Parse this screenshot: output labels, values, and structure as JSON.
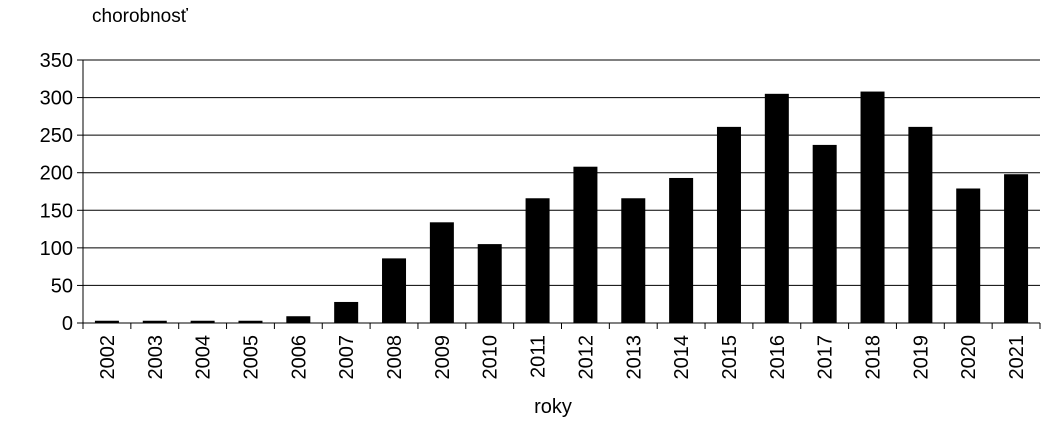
{
  "chart_data": {
    "type": "bar",
    "ylabel": "chorobnosť",
    "xlabel": "roky",
    "categories": [
      "2002",
      "2003",
      "2004",
      "2005",
      "2006",
      "2007",
      "2008",
      "2009",
      "2010",
      "2011",
      "2012",
      "2013",
      "2014",
      "2015",
      "2016",
      "2017",
      "2018",
      "2019",
      "2020",
      "2021"
    ],
    "values": [
      3,
      3,
      3,
      3,
      9,
      28,
      86,
      134,
      105,
      166,
      208,
      166,
      193,
      261,
      305,
      237,
      308,
      261,
      179,
      198
    ],
    "ylim": [
      0,
      350
    ],
    "yticks": [
      "0",
      "50",
      "100",
      "150",
      "200",
      "250",
      "300",
      "350"
    ],
    "grid": true,
    "colors": {
      "bars": "#000000",
      "grid": "#000000"
    }
  }
}
